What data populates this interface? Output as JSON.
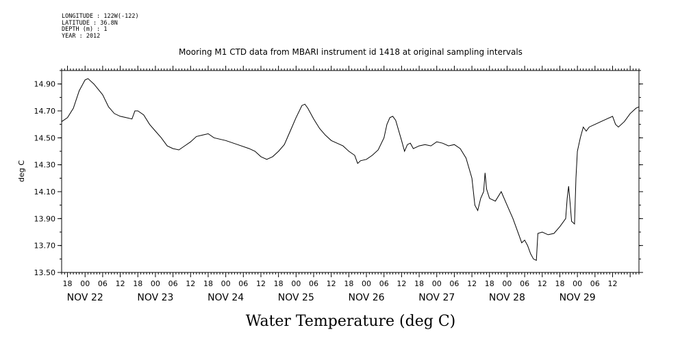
{
  "header": {
    "lines": [
      "LONGITUDE : 122W(-122)",
      "LATITUDE : 36.8N",
      "DEPTH (m) : 1",
      "YEAR : 2012"
    ]
  },
  "chart_data": {
    "type": "line",
    "title": "Mooring M1 CTD data from MBARI instrument id 1418 at original sampling intervals",
    "xlabel": "Water Temperature (deg C)",
    "ylabel": "deg C",
    "ylim": [
      13.5,
      15.0
    ],
    "xlim": [
      "2012-11-21T16:00",
      "2012-11-29T21:00"
    ],
    "grid": false,
    "y_ticks": [
      "13.50",
      "13.70",
      "13.90",
      "14.10",
      "14.30",
      "14.50",
      "14.70",
      "14.90"
    ],
    "x_hour_ticks": [
      {
        "t": "2012-11-21T18:00",
        "label": "18"
      },
      {
        "t": "2012-11-22T00:00",
        "label": "00"
      },
      {
        "t": "2012-11-22T06:00",
        "label": "06"
      },
      {
        "t": "2012-11-22T12:00",
        "label": "12"
      },
      {
        "t": "2012-11-22T18:00",
        "label": "18"
      },
      {
        "t": "2012-11-23T00:00",
        "label": "00"
      },
      {
        "t": "2012-11-23T06:00",
        "label": "06"
      },
      {
        "t": "2012-11-23T12:00",
        "label": "12"
      },
      {
        "t": "2012-11-23T18:00",
        "label": "18"
      },
      {
        "t": "2012-11-24T00:00",
        "label": "00"
      },
      {
        "t": "2012-11-24T06:00",
        "label": "06"
      },
      {
        "t": "2012-11-24T12:00",
        "label": "12"
      },
      {
        "t": "2012-11-24T18:00",
        "label": "18"
      },
      {
        "t": "2012-11-25T00:00",
        "label": "00"
      },
      {
        "t": "2012-11-25T06:00",
        "label": "06"
      },
      {
        "t": "2012-11-25T12:00",
        "label": "12"
      },
      {
        "t": "2012-11-25T18:00",
        "label": "18"
      },
      {
        "t": "2012-11-26T00:00",
        "label": "00"
      },
      {
        "t": "2012-11-26T06:00",
        "label": "06"
      },
      {
        "t": "2012-11-26T12:00",
        "label": "12"
      },
      {
        "t": "2012-11-26T18:00",
        "label": "18"
      },
      {
        "t": "2012-11-27T00:00",
        "label": "00"
      },
      {
        "t": "2012-11-27T06:00",
        "label": "06"
      },
      {
        "t": "2012-11-27T12:00",
        "label": "12"
      },
      {
        "t": "2012-11-27T18:00",
        "label": "18"
      },
      {
        "t": "2012-11-28T00:00",
        "label": "00"
      },
      {
        "t": "2012-11-28T06:00",
        "label": "06"
      },
      {
        "t": "2012-11-28T12:00",
        "label": "12"
      },
      {
        "t": "2012-11-28T18:00",
        "label": "18"
      },
      {
        "t": "2012-11-29T00:00",
        "label": "00"
      },
      {
        "t": "2012-11-29T06:00",
        "label": "06"
      },
      {
        "t": "2012-11-29T12:00",
        "label": "12"
      }
    ],
    "x_day_labels": [
      {
        "t": "2012-11-22T00:00",
        "label": "NOV 22"
      },
      {
        "t": "2012-11-23T00:00",
        "label": "NOV 23"
      },
      {
        "t": "2012-11-24T00:00",
        "label": "NOV 24"
      },
      {
        "t": "2012-11-25T00:00",
        "label": "NOV 25"
      },
      {
        "t": "2012-11-26T00:00",
        "label": "NOV 26"
      },
      {
        "t": "2012-11-27T00:00",
        "label": "NOV 27"
      },
      {
        "t": "2012-11-28T00:00",
        "label": "NOV 28"
      },
      {
        "t": "2012-11-29T00:00",
        "label": "NOV 29"
      }
    ],
    "series": [
      {
        "points": [
          [
            "2012-11-21T16:00",
            14.62
          ],
          [
            "2012-11-21T18:00",
            14.65
          ],
          [
            "2012-11-21T20:00",
            14.72
          ],
          [
            "2012-11-21T22:00",
            14.85
          ],
          [
            "2012-11-22T00:00",
            14.93
          ],
          [
            "2012-11-22T01:00",
            14.94
          ],
          [
            "2012-11-22T03:00",
            14.9
          ],
          [
            "2012-11-22T06:00",
            14.82
          ],
          [
            "2012-11-22T08:00",
            14.73
          ],
          [
            "2012-11-22T10:00",
            14.68
          ],
          [
            "2012-11-22T12:00",
            14.66
          ],
          [
            "2012-11-22T14:00",
            14.65
          ],
          [
            "2012-11-22T16:00",
            14.64
          ],
          [
            "2012-11-22T17:00",
            14.7
          ],
          [
            "2012-11-22T18:00",
            14.7
          ],
          [
            "2012-11-22T20:00",
            14.67
          ],
          [
            "2012-11-22T22:00",
            14.6
          ],
          [
            "2012-11-23T00:00",
            14.55
          ],
          [
            "2012-11-23T02:00",
            14.5
          ],
          [
            "2012-11-23T04:00",
            14.44
          ],
          [
            "2012-11-23T06:00",
            14.42
          ],
          [
            "2012-11-23T08:00",
            14.41
          ],
          [
            "2012-11-23T10:00",
            14.44
          ],
          [
            "2012-11-23T12:00",
            14.47
          ],
          [
            "2012-11-23T14:00",
            14.51
          ],
          [
            "2012-11-23T16:00",
            14.52
          ],
          [
            "2012-11-23T18:00",
            14.53
          ],
          [
            "2012-11-23T20:00",
            14.5
          ],
          [
            "2012-11-24T00:00",
            14.48
          ],
          [
            "2012-11-24T04:00",
            14.45
          ],
          [
            "2012-11-24T08:00",
            14.42
          ],
          [
            "2012-11-24T10:00",
            14.4
          ],
          [
            "2012-11-24T12:00",
            14.36
          ],
          [
            "2012-11-24T14:00",
            14.34
          ],
          [
            "2012-11-24T16:00",
            14.36
          ],
          [
            "2012-11-24T18:00",
            14.4
          ],
          [
            "2012-11-24T20:00",
            14.45
          ],
          [
            "2012-11-24T22:00",
            14.55
          ],
          [
            "2012-11-25T00:00",
            14.65
          ],
          [
            "2012-11-25T02:00",
            14.74
          ],
          [
            "2012-11-25T03:00",
            14.75
          ],
          [
            "2012-11-25T04:00",
            14.72
          ],
          [
            "2012-11-25T06:00",
            14.64
          ],
          [
            "2012-11-25T08:00",
            14.57
          ],
          [
            "2012-11-25T10:00",
            14.52
          ],
          [
            "2012-11-25T12:00",
            14.48
          ],
          [
            "2012-11-25T14:00",
            14.46
          ],
          [
            "2012-11-25T16:00",
            14.44
          ],
          [
            "2012-11-25T18:00",
            14.4
          ],
          [
            "2012-11-25T20:00",
            14.37
          ],
          [
            "2012-11-25T21:00",
            14.31
          ],
          [
            "2012-11-25T22:00",
            14.33
          ],
          [
            "2012-11-26T00:00",
            14.34
          ],
          [
            "2012-11-26T02:00",
            14.37
          ],
          [
            "2012-11-26T04:00",
            14.41
          ],
          [
            "2012-11-26T06:00",
            14.5
          ],
          [
            "2012-11-26T07:00",
            14.6
          ],
          [
            "2012-11-26T08:00",
            14.65
          ],
          [
            "2012-11-26T09:00",
            14.66
          ],
          [
            "2012-11-26T10:00",
            14.63
          ],
          [
            "2012-11-26T12:00",
            14.48
          ],
          [
            "2012-11-26T13:00",
            14.4
          ],
          [
            "2012-11-26T14:00",
            14.45
          ],
          [
            "2012-11-26T15:00",
            14.46
          ],
          [
            "2012-11-26T16:00",
            14.42
          ],
          [
            "2012-11-26T18:00",
            14.44
          ],
          [
            "2012-11-26T20:00",
            14.45
          ],
          [
            "2012-11-26T22:00",
            14.44
          ],
          [
            "2012-11-27T00:00",
            14.47
          ],
          [
            "2012-11-27T02:00",
            14.46
          ],
          [
            "2012-11-27T04:00",
            14.44
          ],
          [
            "2012-11-27T06:00",
            14.45
          ],
          [
            "2012-11-27T08:00",
            14.42
          ],
          [
            "2012-11-27T10:00",
            14.35
          ],
          [
            "2012-11-27T12:00",
            14.2
          ],
          [
            "2012-11-27T13:00",
            14.0
          ],
          [
            "2012-11-27T14:00",
            13.96
          ],
          [
            "2012-11-27T15:00",
            14.05
          ],
          [
            "2012-11-27T16:00",
            14.1
          ],
          [
            "2012-11-27T16:30",
            14.24
          ],
          [
            "2012-11-27T17:00",
            14.12
          ],
          [
            "2012-11-27T18:00",
            14.05
          ],
          [
            "2012-11-27T20:00",
            14.03
          ],
          [
            "2012-11-27T22:00",
            14.1
          ],
          [
            "2012-11-28T00:00",
            14.0
          ],
          [
            "2012-11-28T02:00",
            13.9
          ],
          [
            "2012-11-28T04:00",
            13.78
          ],
          [
            "2012-11-28T05:00",
            13.72
          ],
          [
            "2012-11-28T06:00",
            13.74
          ],
          [
            "2012-11-28T07:00",
            13.7
          ],
          [
            "2012-11-28T08:00",
            13.64
          ],
          [
            "2012-11-28T09:00",
            13.6
          ],
          [
            "2012-11-28T10:00",
            13.59
          ],
          [
            "2012-11-28T10:30",
            13.79
          ],
          [
            "2012-11-28T12:00",
            13.8
          ],
          [
            "2012-11-28T14:00",
            13.78
          ],
          [
            "2012-11-28T16:00",
            13.79
          ],
          [
            "2012-11-28T18:00",
            13.84
          ],
          [
            "2012-11-28T20:00",
            13.9
          ],
          [
            "2012-11-28T20:30",
            14.05
          ],
          [
            "2012-11-28T21:00",
            14.14
          ],
          [
            "2012-11-28T21:30",
            14.02
          ],
          [
            "2012-11-28T22:00",
            13.88
          ],
          [
            "2012-11-28T23:00",
            13.86
          ],
          [
            "2012-11-28T23:30",
            14.2
          ],
          [
            "2012-11-29T00:00",
            14.4
          ],
          [
            "2012-11-29T01:00",
            14.5
          ],
          [
            "2012-11-29T02:00",
            14.58
          ],
          [
            "2012-11-29T03:00",
            14.55
          ],
          [
            "2012-11-29T04:00",
            14.58
          ],
          [
            "2012-11-29T06:00",
            14.6
          ],
          [
            "2012-11-29T08:00",
            14.62
          ],
          [
            "2012-11-29T10:00",
            14.64
          ],
          [
            "2012-11-29T12:00",
            14.66
          ],
          [
            "2012-11-29T13:00",
            14.6
          ],
          [
            "2012-11-29T14:00",
            14.58
          ],
          [
            "2012-11-29T16:00",
            14.62
          ],
          [
            "2012-11-29T18:00",
            14.68
          ],
          [
            "2012-11-29T20:00",
            14.72
          ],
          [
            "2012-11-29T21:00",
            14.73
          ]
        ]
      }
    ]
  }
}
